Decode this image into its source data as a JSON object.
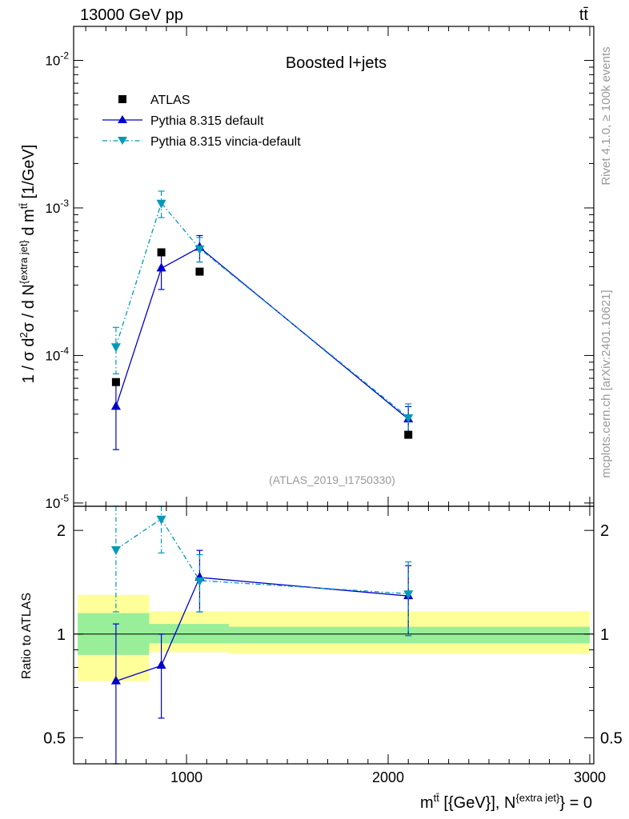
{
  "header": {
    "energy_label": "13000 GeV pp",
    "process_label": "tt̄"
  },
  "side_labels": {
    "rivet": "Rivet 4.1.0, ≥ 100k events",
    "mcplots": "mcplots.cern.ch [arXiv:2401.10621]"
  },
  "colors": {
    "atlas": "#000000",
    "pythia_default": "#0000cc",
    "vincia": "#0099bb",
    "band_inner": "#99ee99",
    "band_outer": "#ffff99"
  },
  "chart_data": [
    {
      "type": "scatter",
      "title": "Boosted l+jets",
      "analysis_tag": "(ATLAS_2019_I1750330)",
      "ylabel": "1 / σ d²σ / d N^{extra jet} d m^{tt̄} [1/GeV]",
      "yscale": "log",
      "ylim": [
        9.5e-06,
        0.017
      ],
      "xlim": [
        440,
        3020
      ],
      "ytick_labels": [
        "10^-5",
        "10^-4",
        "10^-3",
        "10^-2"
      ],
      "ytick_values": [
        1e-05,
        0.0001,
        0.001,
        0.01
      ],
      "legend": [
        "ATLAS",
        "Pythia 8.315 default",
        "Pythia 8.315 vincia-default"
      ],
      "series": [
        {
          "name": "ATLAS",
          "marker": "square",
          "x": [
            650,
            875,
            1065,
            2100
          ],
          "y": [
            6.6e-05,
            0.0005,
            0.00037,
            2.9e-05
          ]
        },
        {
          "name": "Pythia 8.315 default",
          "marker": "triangle-up",
          "line": "solid",
          "x": [
            650,
            875,
            1065,
            2100
          ],
          "y": [
            4.5e-05,
            0.00039,
            0.00054,
            3.7e-05
          ],
          "yerr_low": [
            2.2e-05,
            0.00011,
            0.00011,
            7e-06
          ],
          "yerr_high": [
            2.2e-05,
            0.00011,
            0.00011,
            8e-06
          ]
        },
        {
          "name": "Pythia 8.315 vincia-default",
          "marker": "triangle-down",
          "line": "dash-dot",
          "x": [
            650,
            875,
            1065,
            2100
          ],
          "y": [
            0.000115,
            0.00108,
            0.00053,
            3.8e-05
          ],
          "yerr_low": [
            4e-05,
            0.00022,
            0.0001,
            8e-06
          ],
          "yerr_high": [
            4e-05,
            0.00022,
            0.0001,
            9e-06
          ]
        }
      ]
    },
    {
      "type": "line",
      "ylabel": "Ratio to ATLAS",
      "xlabel": "m^{tt̄} [{GeV}], N^{extra jet} = 0",
      "yscale": "log",
      "ylim": [
        0.42,
        2.35
      ],
      "xlim": [
        440,
        3020
      ],
      "ytick_labels": [
        "0.5",
        "1",
        "2"
      ],
      "ytick_values": [
        0.5,
        1,
        2
      ],
      "xtick_labels": [
        "1000",
        "2000",
        "3000"
      ],
      "xtick_values": [
        1000,
        2000,
        3000
      ],
      "reference_line": 1,
      "bands": [
        {
          "x_low": 460,
          "x_high": 815,
          "inner": [
            0.87,
            1.15
          ],
          "outer": [
            0.73,
            1.3
          ]
        },
        {
          "x_low": 815,
          "x_high": 1210,
          "inner": [
            0.94,
            1.07
          ],
          "outer": [
            0.885,
            1.165
          ]
        },
        {
          "x_low": 1210,
          "x_high": 3000,
          "inner": [
            0.94,
            1.05
          ],
          "outer": [
            0.875,
            1.165
          ]
        }
      ],
      "series": [
        {
          "name": "Pythia 8.315 default",
          "marker": "triangle-up",
          "x": [
            650,
            875,
            1065,
            2100
          ],
          "y": [
            0.73,
            0.81,
            1.46,
            1.29
          ],
          "yerr_low": [
            0.35,
            0.24,
            0.3,
            0.3
          ],
          "yerr_high": [
            0.34,
            0.19,
            0.29,
            0.29
          ]
        },
        {
          "name": "Pythia 8.315 vincia-default",
          "marker": "triangle-down",
          "x": [
            650,
            875,
            1065,
            2100
          ],
          "y": [
            1.76,
            2.16,
            1.43,
            1.31
          ],
          "yerr_low": [
            0.6,
            0.44,
            0.27,
            0.32
          ],
          "yerr_high": [
            0.6,
            0.44,
            0.27,
            0.31
          ]
        }
      ]
    }
  ]
}
